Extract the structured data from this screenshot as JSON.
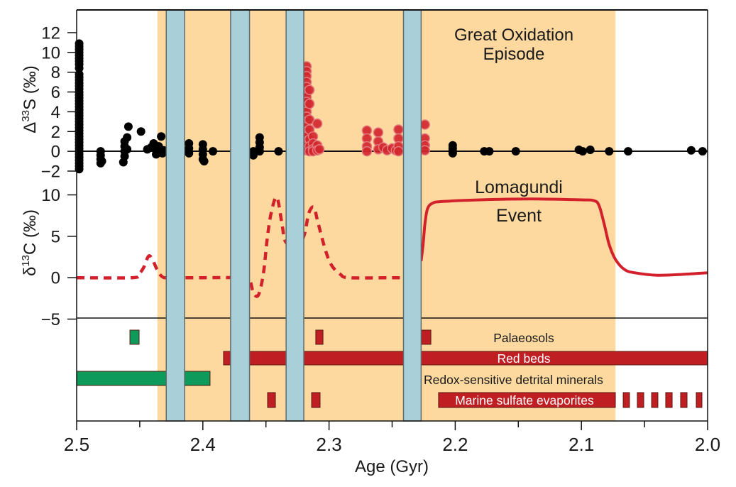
{
  "chart_data": {
    "type": "scatter",
    "xlabel": "Age (Gyr)",
    "xlim": [
      2.5,
      2.0
    ],
    "x_axis": {
      "ticks": [
        2.5,
        2.4,
        2.3,
        2.2,
        2.1,
        2.0
      ],
      "tick_labels": [
        "2.5",
        "2.4",
        "2.3",
        "2.2",
        "2.1",
        "2.0"
      ],
      "minor_ticks": [
        2.45,
        2.35,
        2.25,
        2.15,
        2.05
      ]
    },
    "sulfur_panel": {
      "ylabel": {
        "prefix": "Δ",
        "sup": "33",
        "suffix": "S (‰)"
      },
      "ylim": [
        -2,
        12
      ],
      "ticks": [
        -2,
        0,
        2,
        4,
        6,
        8,
        10,
        12
      ],
      "tick_labels": [
        "−2",
        "0",
        "2",
        "4",
        "6",
        "8",
        "10",
        "12"
      ],
      "black_points": {
        "color": "#000000",
        "points": [
          [
            2.498,
            -1.8
          ],
          [
            2.498,
            -1.5
          ],
          [
            2.498,
            -1.2
          ],
          [
            2.498,
            -0.9
          ],
          [
            2.498,
            -0.6
          ],
          [
            2.498,
            -0.3
          ],
          [
            2.498,
            0
          ],
          [
            2.498,
            0.3
          ],
          [
            2.498,
            0.6
          ],
          [
            2.498,
            0.9
          ],
          [
            2.498,
            1.2
          ],
          [
            2.498,
            1.5
          ],
          [
            2.498,
            1.8
          ],
          [
            2.498,
            2.1
          ],
          [
            2.498,
            2.4
          ],
          [
            2.498,
            2.7
          ],
          [
            2.498,
            3.0
          ],
          [
            2.498,
            3.3
          ],
          [
            2.498,
            3.6
          ],
          [
            2.498,
            3.9
          ],
          [
            2.498,
            4.2
          ],
          [
            2.498,
            4.5
          ],
          [
            2.498,
            4.8
          ],
          [
            2.498,
            5.1
          ],
          [
            2.498,
            5.4
          ],
          [
            2.498,
            5.7
          ],
          [
            2.498,
            6.0
          ],
          [
            2.498,
            6.3
          ],
          [
            2.498,
            6.6
          ],
          [
            2.498,
            6.9
          ],
          [
            2.498,
            7.2
          ],
          [
            2.498,
            7.5
          ],
          [
            2.498,
            7.8
          ],
          [
            2.498,
            8.4
          ],
          [
            2.498,
            8.8
          ],
          [
            2.498,
            9.1
          ],
          [
            2.498,
            9.4
          ],
          [
            2.498,
            9.7
          ],
          [
            2.498,
            10.0
          ],
          [
            2.498,
            10.3
          ],
          [
            2.498,
            10.6
          ],
          [
            2.498,
            10.9
          ],
          [
            2.481,
            0
          ],
          [
            2.481,
            -0.4
          ],
          [
            2.481,
            -0.8
          ],
          [
            2.481,
            -1.2
          ],
          [
            2.48,
            -1.0
          ],
          [
            2.462,
            1.0
          ],
          [
            2.462,
            0.5
          ],
          [
            2.462,
            0
          ],
          [
            2.462,
            -0.5
          ],
          [
            2.463,
            -1.1
          ],
          [
            2.46,
            1.4
          ],
          [
            2.46,
            0.2
          ],
          [
            2.459,
            2.5
          ],
          [
            2.449,
            2.0
          ],
          [
            2.444,
            0.2
          ],
          [
            2.441,
            0.4
          ],
          [
            2.439,
            0.8
          ],
          [
            2.437,
            0.1
          ],
          [
            2.437,
            -0.3
          ],
          [
            2.435,
            0.5
          ],
          [
            2.434,
            0
          ],
          [
            2.433,
            1.5
          ],
          [
            2.432,
            -0.2
          ],
          [
            2.431,
            0.1
          ],
          [
            2.411,
            0.8
          ],
          [
            2.411,
            0.3
          ],
          [
            2.411,
            -0.2
          ],
          [
            2.4,
            0.7
          ],
          [
            2.4,
            0.2
          ],
          [
            2.4,
            -0.3
          ],
          [
            2.4,
            -0.8
          ],
          [
            2.399,
            -1.0
          ],
          [
            2.392,
            0
          ],
          [
            2.36,
            0
          ],
          [
            2.36,
            -0.4
          ],
          [
            2.355,
            1.4
          ],
          [
            2.355,
            0.9
          ],
          [
            2.355,
            0.4
          ],
          [
            2.355,
            0
          ],
          [
            2.34,
            0
          ],
          [
            2.202,
            0.6
          ],
          [
            2.202,
            0.3
          ],
          [
            2.202,
            0
          ],
          [
            2.202,
            -0.2
          ],
          [
            2.177,
            0
          ],
          [
            2.173,
            0
          ],
          [
            2.152,
            0
          ],
          [
            2.102,
            0.15
          ],
          [
            2.099,
            0
          ],
          [
            2.093,
            0.15
          ],
          [
            2.078,
            0
          ],
          [
            2.063,
            0
          ],
          [
            2.013,
            0.1
          ],
          [
            2.004,
            0
          ]
        ]
      },
      "red_points": {
        "color": "#D2262E",
        "outline": "#E27A7E",
        "points": [
          [
            2.3178,
            8.6
          ],
          [
            2.3178,
            8.1
          ],
          [
            2.3178,
            7.6
          ],
          [
            2.3178,
            7.0
          ],
          [
            2.3178,
            6.5
          ],
          [
            2.3178,
            6.0
          ],
          [
            2.3178,
            5.5
          ],
          [
            2.3178,
            5.0
          ],
          [
            2.3178,
            4.5
          ],
          [
            2.3178,
            4.0
          ],
          [
            2.3178,
            3.5
          ],
          [
            2.3178,
            3.0
          ],
          [
            2.3178,
            2.5
          ],
          [
            2.3178,
            2.0
          ],
          [
            2.3178,
            1.5
          ],
          [
            2.3178,
            1.0
          ],
          [
            2.3178,
            0.5
          ],
          [
            2.3178,
            0.1
          ],
          [
            2.3155,
            6.2
          ],
          [
            2.3155,
            4.8
          ],
          [
            2.3155,
            3.2
          ],
          [
            2.3155,
            2.2
          ],
          [
            2.3155,
            1.2
          ],
          [
            2.3155,
            0.5
          ],
          [
            2.3155,
            0
          ],
          [
            2.3127,
            1.5
          ],
          [
            2.3127,
            0.8
          ],
          [
            2.3127,
            0.2
          ],
          [
            2.3127,
            0
          ],
          [
            2.3093,
            2.8
          ],
          [
            2.3093,
            0.6
          ],
          [
            2.3093,
            0.1
          ],
          [
            2.3076,
            0.2
          ],
          [
            2.27,
            2.1
          ],
          [
            2.27,
            1.3
          ],
          [
            2.27,
            0.5
          ],
          [
            2.27,
            0
          ],
          [
            2.261,
            1.9
          ],
          [
            2.261,
            1.0
          ],
          [
            2.261,
            0.2
          ],
          [
            2.257,
            0.4
          ],
          [
            2.254,
            0.1
          ],
          [
            2.25,
            0.3
          ],
          [
            2.247,
            0.1
          ],
          [
            2.245,
            2.2
          ],
          [
            2.245,
            1.3
          ],
          [
            2.245,
            0.5
          ],
          [
            2.245,
            0
          ],
          [
            2.224,
            2.7
          ],
          [
            2.224,
            1.3
          ],
          [
            2.224,
            0.6
          ],
          [
            2.224,
            0.1
          ]
        ]
      }
    },
    "carbon_panel": {
      "ylabel": {
        "prefix": "δ",
        "sup": "13",
        "suffix": "C (‰)"
      },
      "ylim": [
        -5,
        10
      ],
      "ticks": [
        -5,
        0,
        5,
        10
      ],
      "tick_labels": [
        "−5",
        "0",
        "5",
        "10"
      ],
      "line_color": "#D3212C",
      "dashed_segment": [
        [
          2.5,
          0
        ],
        [
          2.456,
          0
        ],
        [
          2.451,
          0.4
        ],
        [
          2.447,
          1.2
        ],
        [
          2.443,
          2.6
        ],
        [
          2.44,
          2.2
        ],
        [
          2.436,
          0.9
        ],
        [
          2.432,
          0.1
        ],
        [
          2.426,
          0
        ],
        [
          2.4,
          0
        ],
        [
          2.37,
          0
        ],
        [
          2.363,
          -0.3
        ],
        [
          2.36,
          -1.8
        ],
        [
          2.356,
          -2.1
        ],
        [
          2.352,
          0.5
        ],
        [
          2.349,
          4.7
        ],
        [
          2.346,
          7.7
        ],
        [
          2.3414,
          9.7
        ],
        [
          2.337,
          6.2
        ],
        [
          2.3347,
          4.4
        ],
        [
          2.327,
          3.5
        ],
        [
          2.32,
          5.0
        ],
        [
          2.316,
          7.8
        ],
        [
          2.312,
          8.5
        ],
        [
          2.309,
          6.8
        ],
        [
          2.303,
          3.4
        ],
        [
          2.298,
          1.5
        ],
        [
          2.291,
          0.4
        ],
        [
          2.284,
          0
        ],
        [
          2.25,
          0
        ],
        [
          2.24,
          0
        ]
      ],
      "solid_segment": [
        [
          2.227,
          2.0
        ],
        [
          2.2255,
          4.0
        ],
        [
          2.224,
          6.5
        ],
        [
          2.222,
          8.3
        ],
        [
          2.218,
          9.0
        ],
        [
          2.21,
          9.2
        ],
        [
          2.18,
          9.4
        ],
        [
          2.14,
          9.5
        ],
        [
          2.1,
          9.4
        ],
        [
          2.09,
          9.3
        ],
        [
          2.086,
          8.7
        ],
        [
          2.082,
          6.5
        ],
        [
          2.078,
          4.0
        ],
        [
          2.073,
          2.2
        ],
        [
          2.066,
          1.0
        ],
        [
          2.058,
          0.6
        ],
        [
          2.04,
          0.3
        ],
        [
          2.02,
          0.4
        ],
        [
          2.0,
          0.6
        ]
      ]
    },
    "shaded_intervals": {
      "great_oxidation_episode": {
        "from": 2.436,
        "to": 2.073,
        "color": "#FDD9A0"
      },
      "glaciation_color": "#A9CFD8",
      "glaciations": [
        {
          "from": 2.429,
          "to": 2.4145
        },
        {
          "from": 2.378,
          "to": 2.363
        },
        {
          "from": 2.334,
          "to": 2.32
        },
        {
          "from": 2.241,
          "to": 2.227
        }
      ]
    },
    "annotations": {
      "goe_line1": "Great Oxidation",
      "goe_line2": "Episode",
      "lomagundi_line1": "Lomagundi",
      "lomagundi_line2": "Event"
    },
    "colors": {
      "green": "#0E9A5A",
      "red": "#BF1E22",
      "bar_outline": "#5a1a12"
    },
    "proxy_rows": [
      {
        "label": "Palaeosols",
        "segments": [
          {
            "from": 2.4578,
            "to": 2.4505,
            "color": "#0E9A5A"
          },
          {
            "from": 2.3105,
            "to": 2.3048,
            "color": "#BF1E22"
          },
          {
            "from": 2.2267,
            "to": 2.2193,
            "color": "#BF1E22"
          }
        ]
      },
      {
        "label": "Red beds",
        "segments": [
          {
            "from": 2.3836,
            "to": 2.0,
            "color": "#BF1E22"
          }
        ]
      },
      {
        "label": "Redox-sensitive detrital minerals",
        "segments": [
          {
            "from": 2.5,
            "to": 2.3943,
            "color": "#0E9A5A"
          }
        ]
      },
      {
        "label": "Marine sulfate evaporites",
        "segments": [
          {
            "from": 2.3487,
            "to": 2.3425,
            "color": "#BF1E22"
          },
          {
            "from": 2.3138,
            "to": 2.3071,
            "color": "#BF1E22"
          },
          {
            "from": 2.2132,
            "to": 2.0731,
            "color": "#BF1E22"
          },
          {
            "from": 2.0669,
            "to": 2.0619,
            "color": "#BF1E22"
          },
          {
            "from": 2.0557,
            "to": 2.0506,
            "color": "#BF1E22"
          },
          {
            "from": 2.0444,
            "to": 2.0394,
            "color": "#BF1E22"
          },
          {
            "from": 2.0332,
            "to": 2.0281,
            "color": "#BF1E22"
          },
          {
            "from": 2.0214,
            "to": 2.0163,
            "color": "#BF1E22"
          },
          {
            "from": 2.009,
            "to": 2.0045,
            "color": "#BF1E22"
          }
        ]
      }
    ]
  }
}
